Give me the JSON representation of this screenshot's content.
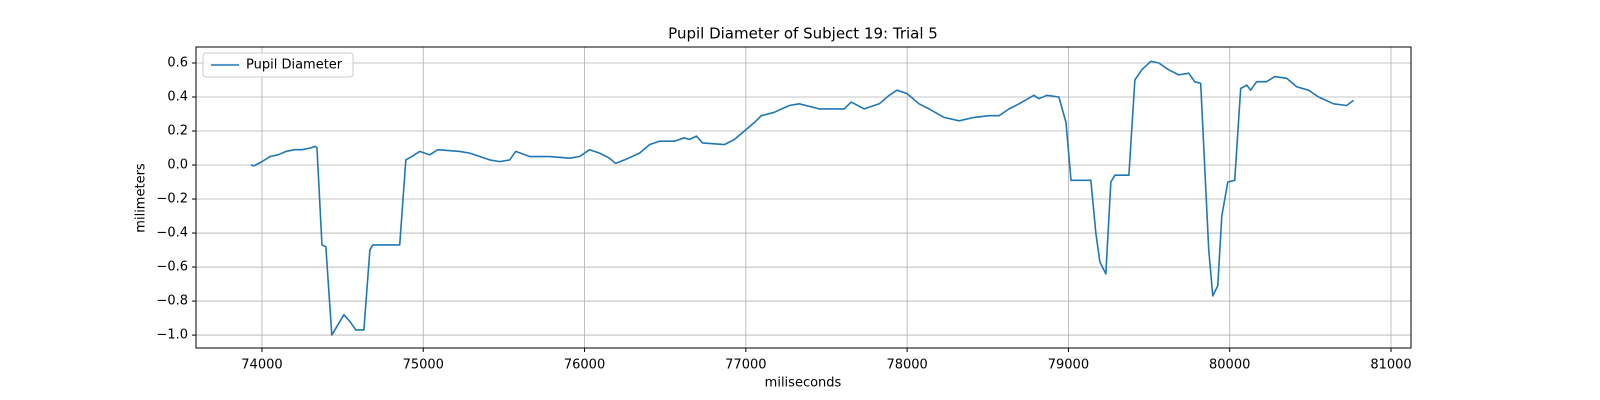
{
  "chart_data": {
    "type": "line",
    "title": "Pupil Diameter of Subject 19: Trial 5",
    "x_label": "miliseconds",
    "y_label": "milimeters",
    "legend": "upper left",
    "grid": true,
    "xlim": [
      73591,
      81124
    ],
    "ylim": [
      -1.076,
      0.694
    ],
    "xticks": [
      74000,
      75000,
      76000,
      77000,
      78000,
      79000,
      80000,
      81000
    ],
    "yticks": [
      {
        "value": -1.0,
        "label": "−1.0"
      },
      {
        "value": -0.8,
        "label": "−0.8"
      },
      {
        "value": -0.6,
        "label": "−0.6"
      },
      {
        "value": -0.4,
        "label": "−0.4"
      },
      {
        "value": -0.2,
        "label": "−0.2"
      },
      {
        "value": 0.0,
        "label": "0.0"
      },
      {
        "value": 0.2,
        "label": "0.2"
      },
      {
        "value": 0.4,
        "label": "0.4"
      },
      {
        "value": 0.6,
        "label": "0.6"
      }
    ],
    "x": [
      73930,
      73950,
      74000,
      74050,
      74100,
      74150,
      74200,
      74250,
      74300,
      74330,
      74341,
      74372,
      74396,
      74433,
      74508,
      74545,
      74582,
      74632,
      74669,
      74687,
      74854,
      74892,
      74929,
      74978,
      75040,
      75090,
      75226,
      75288,
      75350,
      75412,
      75474,
      75536,
      75573,
      75659,
      75783,
      75907,
      75969,
      76031,
      76093,
      76155,
      76192,
      76248,
      76341,
      76403,
      76464,
      76557,
      76619,
      76650,
      76694,
      76731,
      76867,
      76929,
      76991,
      77053,
      77096,
      77176,
      77269,
      77331,
      77455,
      77610,
      77653,
      77734,
      77827,
      77889,
      77938,
      78000,
      78074,
      78136,
      78229,
      78322,
      78415,
      78508,
      78570,
      78632,
      78694,
      78786,
      78817,
      78867,
      78941,
      78985,
      79016,
      79139,
      79170,
      79195,
      79232,
      79263,
      79288,
      79375,
      79412,
      79455,
      79511,
      79560,
      79622,
      79684,
      79746,
      79783,
      79820,
      79870,
      79895,
      79926,
      79951,
      79988,
      80031,
      80068,
      80106,
      80130,
      80167,
      80229,
      80279,
      80353,
      80415,
      80489,
      80551,
      80644,
      80724,
      80768
    ],
    "series": [
      {
        "name": "Pupil Diameter",
        "color": "#1f77b4",
        "values": [
          0.0,
          -0.005,
          0.02,
          0.05,
          0.06,
          0.08,
          0.09,
          0.09,
          0.1,
          0.11,
          0.1,
          -0.47,
          -0.48,
          -1.0,
          -0.88,
          -0.92,
          -0.97,
          -0.97,
          -0.5,
          -0.47,
          -0.47,
          0.03,
          0.05,
          0.08,
          0.06,
          0.09,
          0.08,
          0.07,
          0.05,
          0.03,
          0.02,
          0.03,
          0.08,
          0.05,
          0.05,
          0.04,
          0.05,
          0.09,
          0.07,
          0.04,
          0.01,
          0.03,
          0.07,
          0.12,
          0.14,
          0.14,
          0.16,
          0.15,
          0.17,
          0.13,
          0.12,
          0.15,
          0.2,
          0.25,
          0.29,
          0.31,
          0.35,
          0.36,
          0.33,
          0.33,
          0.37,
          0.33,
          0.36,
          0.41,
          0.44,
          0.42,
          0.36,
          0.33,
          0.28,
          0.26,
          0.28,
          0.29,
          0.29,
          0.33,
          0.36,
          0.41,
          0.39,
          0.41,
          0.4,
          0.25,
          -0.09,
          -0.09,
          -0.4,
          -0.57,
          -0.64,
          -0.1,
          -0.06,
          -0.06,
          0.5,
          0.56,
          0.61,
          0.6,
          0.56,
          0.53,
          0.54,
          0.49,
          0.48,
          -0.5,
          -0.77,
          -0.71,
          -0.3,
          -0.1,
          -0.09,
          0.45,
          0.47,
          0.44,
          0.49,
          0.49,
          0.52,
          0.51,
          0.46,
          0.44,
          0.4,
          0.36,
          0.35,
          0.38
        ]
      }
    ]
  }
}
